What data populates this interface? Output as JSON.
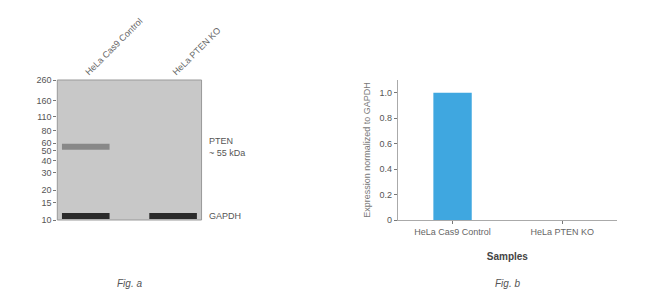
{
  "chart_data": [
    {
      "type": "blot",
      "categories": [
        "HeLa Cas9 Control",
        "HeLa PTEN KO"
      ],
      "series": [
        {
          "name": "PTEN\n~ 55 kDa",
          "color": "#888888",
          "values": [
            55,
            null
          ]
        },
        {
          "name": "GAPDH",
          "color": "#2a2a2a",
          "values": [
            11,
            11
          ]
        }
      ],
      "log": "y",
      "ylim": [
        10,
        260
      ],
      "yticks": [
        260,
        160,
        110,
        80,
        60,
        50,
        40,
        30,
        20,
        15,
        10
      ],
      "grid": false,
      "annotations": [
        "Fig. a"
      ]
    },
    {
      "type": "bar",
      "categories": [
        "HeLa Cas9 Control",
        "HeLa PTEN KO"
      ],
      "values": [
        1.0,
        0.0
      ],
      "color": "#3fa7e0",
      "xlabel": "Samples",
      "ylabel": "Expression normalized to GAPDH",
      "ylim": [
        0,
        1.1
      ],
      "yticks": [
        0,
        0.2,
        0.4,
        0.6,
        0.8,
        {
          "value": 1.0,
          "label": "1.0"
        }
      ],
      "grid": false,
      "annotations": [
        "Fig. b"
      ]
    }
  ]
}
